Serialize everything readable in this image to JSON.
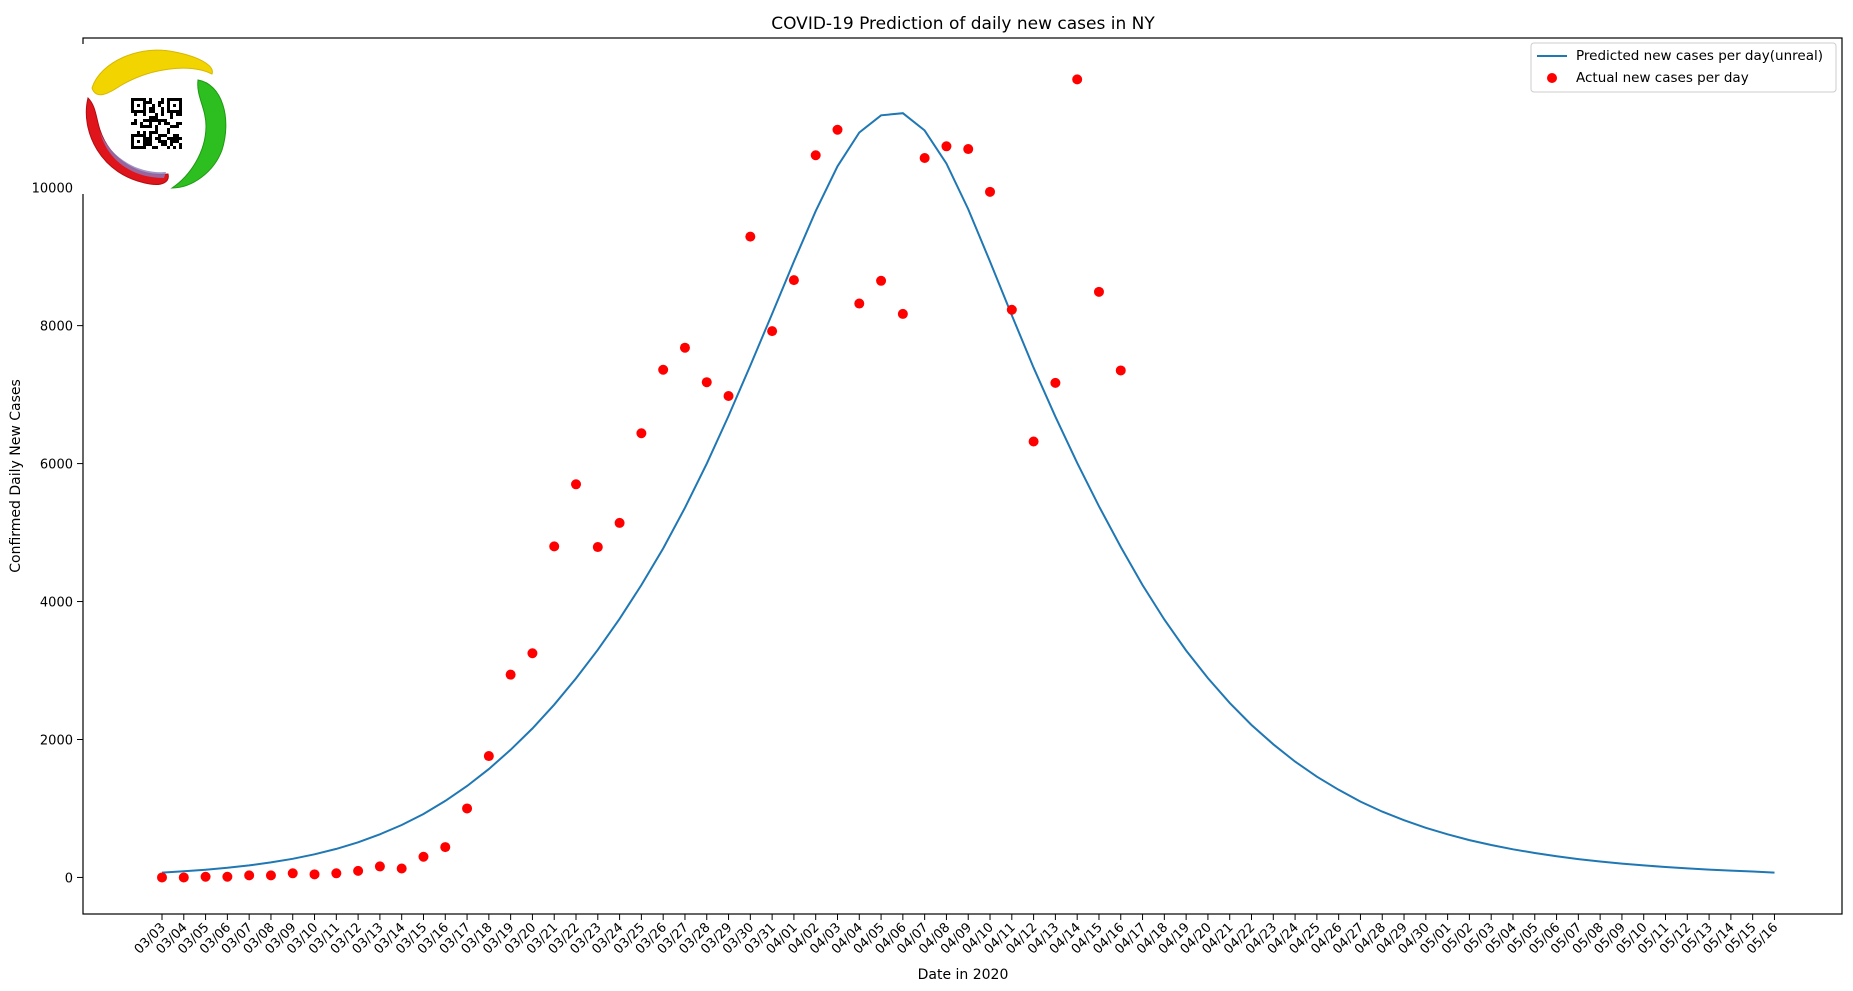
{
  "chart_data": {
    "type": "line",
    "title": "COVID-19 Prediction of daily new cases in NY",
    "xlabel": "Date in 2020",
    "ylabel": "Confirmed Daily New Cases",
    "ylim": [
      -530,
      12170
    ],
    "yticks": [
      0,
      2000,
      4000,
      6000,
      8000,
      10000
    ],
    "grid": false,
    "legend_position": "top-right",
    "categories": [
      "03/03",
      "03/04",
      "03/05",
      "03/06",
      "03/07",
      "03/08",
      "03/09",
      "03/10",
      "03/11",
      "03/12",
      "03/13",
      "03/14",
      "03/15",
      "03/16",
      "03/17",
      "03/18",
      "03/19",
      "03/20",
      "03/21",
      "03/22",
      "03/23",
      "03/24",
      "03/25",
      "03/26",
      "03/27",
      "03/28",
      "03/29",
      "03/30",
      "03/31",
      "04/01",
      "04/02",
      "04/03",
      "04/04",
      "04/05",
      "04/06",
      "04/07",
      "04/08",
      "04/09",
      "04/10",
      "04/11",
      "04/12",
      "04/13",
      "04/14",
      "04/15",
      "04/16",
      "04/17",
      "04/18",
      "04/19",
      "04/20",
      "04/21",
      "04/22",
      "04/23",
      "04/24",
      "04/25",
      "04/26",
      "04/27",
      "04/28",
      "04/29",
      "04/30",
      "05/01",
      "05/02",
      "05/03",
      "05/04",
      "05/05",
      "05/06",
      "05/07",
      "05/08",
      "05/09",
      "05/10",
      "05/11",
      "05/12",
      "05/13",
      "05/14",
      "05/15",
      "05/16"
    ],
    "series": [
      {
        "name": "Predicted new cases per day(unreal)",
        "type": "line",
        "color": "#1f77b4",
        "values": [
          70,
          90,
          112,
          140,
          175,
          218,
          270,
          335,
          414,
          510,
          625,
          760,
          920,
          1110,
          1325,
          1570,
          1850,
          2160,
          2505,
          2885,
          3300,
          3750,
          4240,
          4770,
          5360,
          6000,
          6690,
          7420,
          8170,
          8930,
          9660,
          10310,
          10800,
          11050,
          11080,
          10830,
          10350,
          9690,
          8930,
          8150,
          7390,
          6680,
          6010,
          5380,
          4790,
          4240,
          3740,
          3290,
          2890,
          2530,
          2210,
          1930,
          1680,
          1460,
          1270,
          1100,
          955,
          830,
          720,
          625,
          542,
          470,
          408,
          354,
          307,
          266,
          231,
          200,
          174,
          151,
          131,
          114,
          99,
          86,
          70
        ]
      },
      {
        "name": "Actual new cases per day",
        "type": "scatter",
        "color": "#ff0000",
        "values": [
          0,
          0,
          10,
          10,
          30,
          30,
          60,
          45,
          60,
          95,
          160,
          130,
          300,
          440,
          1000,
          1760,
          2940,
          3250,
          4800,
          5700,
          4790,
          5140,
          6440,
          7360,
          7680,
          7180,
          6980,
          9290,
          7920,
          8660,
          10470,
          10840,
          8320,
          8650,
          8170,
          10430,
          10600,
          10560,
          9940,
          8230,
          6320,
          7170,
          11570,
          8490,
          7350
        ]
      }
    ]
  },
  "logo": {
    "description_icon": "qr-code-icon",
    "colors": [
      "#f2d400",
      "#2dbe1f",
      "#e0141b",
      "#8a7bbd"
    ]
  }
}
